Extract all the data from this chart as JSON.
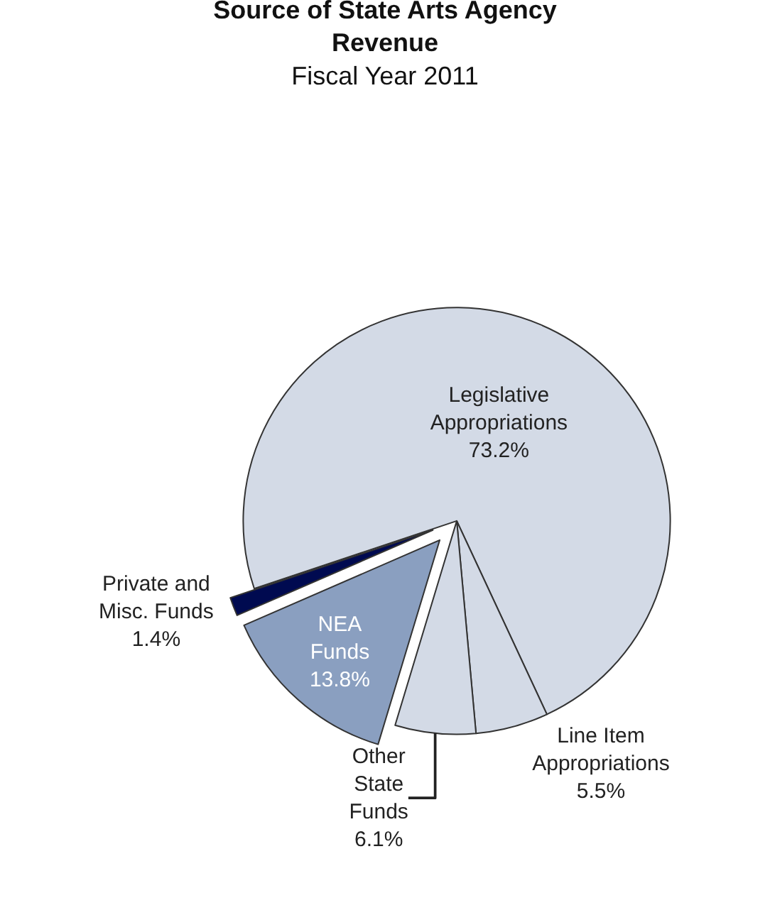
{
  "chart_data": {
    "type": "pie",
    "title": "Source of State Arts Agency\nRevenue",
    "subtitle": "Fiscal Year 2011",
    "categories": [
      "Legislative\nAppropriations",
      "Line Item\nAppropriations",
      "Other\nState\nFunds",
      "NEA\nFunds",
      "Private and\nMisc. Funds"
    ],
    "values": [
      73.2,
      5.5,
      6.1,
      13.8,
      1.4
    ],
    "value_labels": [
      "73.2%",
      "5.5%",
      "6.1%",
      "13.8%",
      "1.4%"
    ],
    "colors": [
      "#d3dae6",
      "#d3dae6",
      "#d3dae6",
      "#8a9fc0",
      "#000a50"
    ],
    "legend": false
  }
}
